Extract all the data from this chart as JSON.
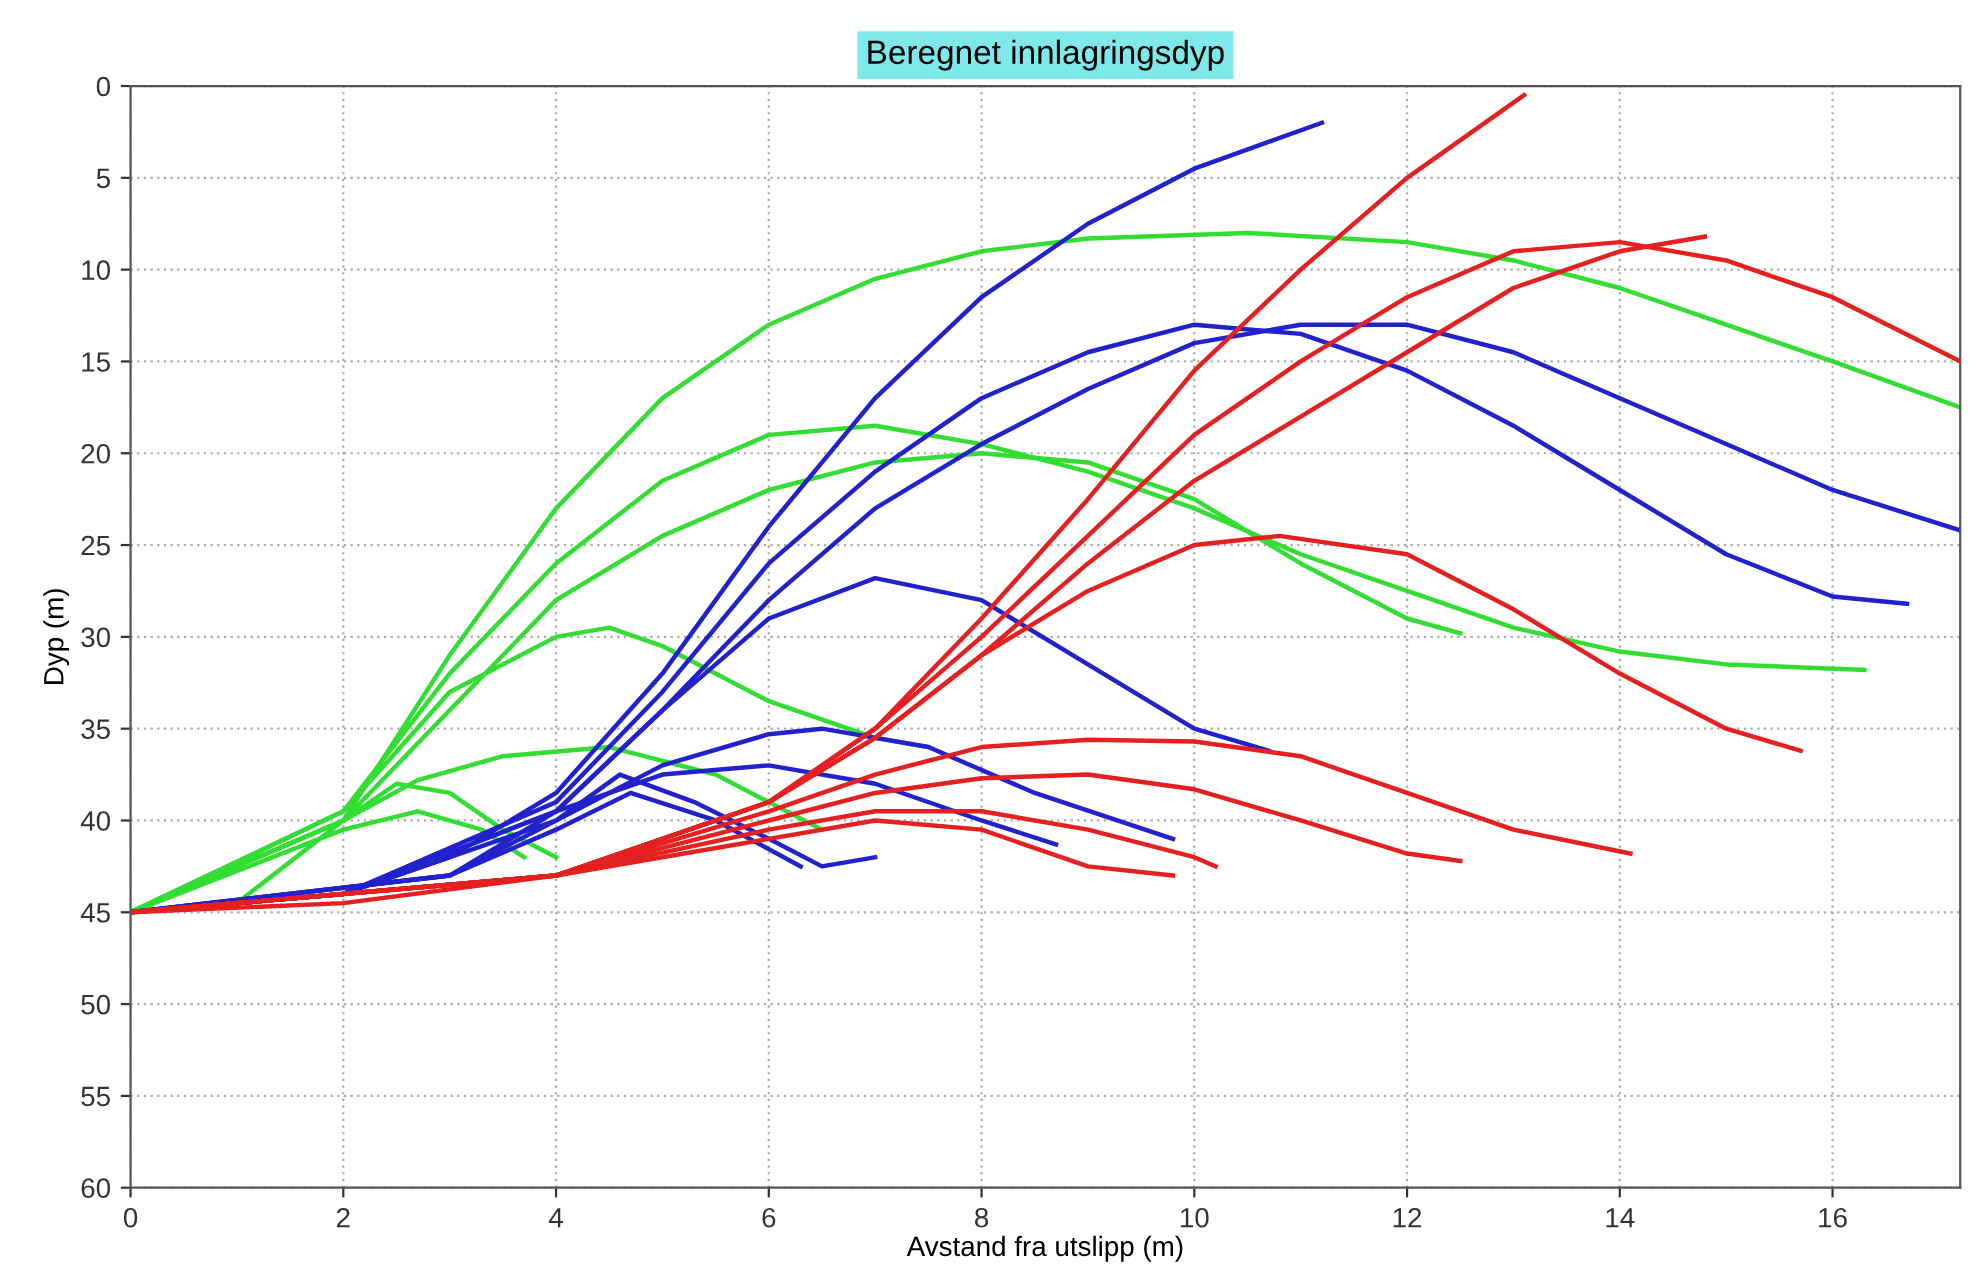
{
  "chart_data": {
    "type": "line",
    "title": "Beregnet innlagringsdyp",
    "xlabel": "Avstand fra utslipp (m)",
    "ylabel": "Dyp (m)",
    "xlim": [
      0,
      17.2
    ],
    "xticks": [
      0,
      2,
      4,
      6,
      8,
      10,
      12,
      14,
      16
    ],
    "ylim": [
      60,
      0
    ],
    "yticks": [
      0,
      5,
      10,
      15,
      20,
      25,
      30,
      35,
      40,
      45,
      50,
      55,
      60
    ],
    "grid": true,
    "line_style": "solid",
    "marker": "none",
    "series": [
      {
        "color": "#33dd33",
        "x": [
          0,
          1,
          2,
          3,
          4,
          5,
          6,
          7,
          8,
          9,
          10.5,
          12,
          13,
          14,
          15,
          16,
          17.2
        ],
        "values": [
          45,
          44.5,
          40,
          31,
          23,
          17,
          13,
          10.5,
          9,
          8.3,
          8,
          8.5,
          9.5,
          11,
          13,
          15,
          17.5
        ]
      },
      {
        "color": "#33dd33",
        "x": [
          0,
          2,
          3,
          4,
          5,
          6,
          7,
          8,
          9,
          10,
          11,
          12,
          13,
          14,
          15,
          16.3
        ],
        "values": [
          45,
          39.5,
          32,
          26,
          21.5,
          19,
          18.5,
          19.5,
          21,
          23,
          25.5,
          27.5,
          29.5,
          30.8,
          31.5,
          31.8
        ]
      },
      {
        "color": "#33dd33",
        "x": [
          0,
          2,
          3,
          4,
          5,
          6,
          7,
          8,
          9,
          10,
          11,
          12,
          12.5
        ],
        "values": [
          45,
          40,
          34,
          28,
          24.5,
          22,
          20.5,
          20,
          20.5,
          22.5,
          26,
          29,
          29.8
        ]
      },
      {
        "color": "#33dd33",
        "x": [
          0,
          2,
          3,
          4,
          4.5,
          5,
          6,
          7,
          7.5
        ],
        "values": [
          45,
          39.5,
          33,
          30,
          29.5,
          30.5,
          33.5,
          35.5,
          36
        ]
      },
      {
        "color": "#33dd33",
        "x": [
          0,
          2,
          2.7,
          3.5,
          4.5,
          5.5,
          6.5
        ],
        "values": [
          45,
          40,
          37.8,
          36.5,
          36,
          37.5,
          40.5
        ]
      },
      {
        "color": "#33dd33",
        "x": [
          0,
          2,
          2.5,
          3,
          3.5,
          4
        ],
        "values": [
          45,
          40,
          38,
          38.5,
          40.5,
          42
        ]
      },
      {
        "color": "#33dd33",
        "x": [
          0,
          2,
          2.7,
          3.3,
          3.7
        ],
        "values": [
          45,
          40.5,
          39.5,
          40.5,
          42
        ]
      },
      {
        "color": "#2222cc",
        "x": [
          0,
          2,
          3,
          4,
          5,
          6,
          7,
          8,
          9,
          10,
          11.2
        ],
        "values": [
          45,
          44,
          42,
          38.5,
          32,
          24,
          17,
          11.5,
          7.5,
          4.5,
          2
        ]
      },
      {
        "color": "#2222cc",
        "x": [
          0,
          2,
          4,
          5,
          6,
          7,
          8,
          9,
          10,
          11,
          12,
          13,
          14,
          15,
          16,
          16.7
        ],
        "values": [
          45,
          44,
          39,
          33,
          26,
          21,
          17,
          14.5,
          13,
          13.5,
          15.5,
          18.5,
          22,
          25.5,
          27.8,
          28.2
        ]
      },
      {
        "color": "#2222cc",
        "x": [
          0,
          2,
          4,
          5,
          6,
          7,
          8,
          9,
          10,
          11,
          12,
          13,
          14,
          15,
          16,
          17.2
        ],
        "values": [
          45,
          44,
          39.5,
          34,
          28,
          23,
          19.5,
          16.5,
          14,
          13,
          13,
          14.5,
          17,
          19.5,
          22,
          24.2
        ]
      },
      {
        "color": "#2222cc",
        "x": [
          0,
          2,
          4,
          5,
          6,
          7,
          8,
          9,
          10,
          10.7
        ],
        "values": [
          45,
          44,
          39.5,
          34,
          29,
          26.8,
          28,
          31.5,
          35,
          36.2
        ]
      },
      {
        "color": "#2222cc",
        "x": [
          0,
          2,
          4,
          5,
          6,
          6.5,
          7.5,
          8.5,
          9.8
        ],
        "values": [
          45,
          44,
          40,
          37,
          35.3,
          35,
          36,
          38.5,
          41
        ]
      },
      {
        "color": "#2222cc",
        "x": [
          0,
          3,
          4,
          5,
          6,
          7,
          8,
          8.7
        ],
        "values": [
          45,
          43,
          39.5,
          37.5,
          37,
          38,
          40,
          41.3
        ]
      },
      {
        "color": "#2222cc",
        "x": [
          0,
          3,
          4,
          4.6,
          5.3,
          6,
          6.5,
          7
        ],
        "values": [
          45,
          43,
          40,
          37.5,
          39,
          41,
          42.5,
          42
        ]
      },
      {
        "color": "#2222cc",
        "x": [
          0,
          3,
          4,
          4.7,
          5.5,
          6.3
        ],
        "values": [
          45,
          43,
          40.5,
          38.5,
          40,
          42.5
        ]
      },
      {
        "color": "#e52020",
        "x": [
          0,
          2,
          4,
          6,
          7,
          8,
          9,
          10,
          11,
          12,
          13.1
        ],
        "values": [
          45,
          44.5,
          43,
          39,
          35,
          29,
          22.5,
          15.5,
          10,
          5,
          0.5
        ]
      },
      {
        "color": "#e52020",
        "x": [
          0,
          4,
          6,
          7,
          8,
          9,
          10,
          11,
          12,
          13,
          14,
          15,
          16,
          17.2
        ],
        "values": [
          45,
          43,
          39,
          35,
          30,
          24.5,
          19,
          15,
          11.5,
          9,
          8.5,
          9.5,
          11.5,
          15
        ]
      },
      {
        "color": "#e52020",
        "x": [
          0,
          4,
          6,
          7,
          8,
          9,
          10,
          11,
          12,
          13,
          14,
          14.8
        ],
        "values": [
          45,
          43,
          39,
          35.5,
          31,
          26,
          21.5,
          18,
          14.5,
          11,
          9,
          8.2
        ]
      },
      {
        "color": "#e52020",
        "x": [
          0,
          4,
          6,
          7,
          8,
          9,
          10,
          10.8,
          12,
          13,
          14,
          15,
          15.7
        ],
        "values": [
          45,
          43,
          39,
          35.5,
          31,
          27.5,
          25,
          24.5,
          25.5,
          28.5,
          32,
          35,
          36.2
        ]
      },
      {
        "color": "#e52020",
        "x": [
          0,
          4,
          6,
          7,
          8,
          9,
          10,
          11,
          12,
          13,
          14.1
        ],
        "values": [
          45,
          43,
          39.5,
          37.5,
          36,
          35.6,
          35.7,
          36.5,
          38.5,
          40.5,
          41.8
        ]
      },
      {
        "color": "#e52020",
        "x": [
          0,
          4,
          6,
          7,
          8,
          9,
          10,
          11,
          12,
          12.5
        ],
        "values": [
          45,
          43,
          40,
          38.5,
          37.7,
          37.5,
          38.3,
          40,
          41.8,
          42.2
        ]
      },
      {
        "color": "#e52020",
        "x": [
          0,
          4,
          6,
          7,
          8,
          9,
          10,
          10.2
        ],
        "values": [
          45,
          43,
          40.5,
          39.5,
          39.5,
          40.5,
          42,
          42.5
        ]
      },
      {
        "color": "#e52020",
        "x": [
          0,
          4,
          6,
          7,
          8,
          9,
          9.8
        ],
        "values": [
          45,
          43,
          41,
          40,
          40.5,
          42.5,
          43
        ]
      }
    ]
  }
}
